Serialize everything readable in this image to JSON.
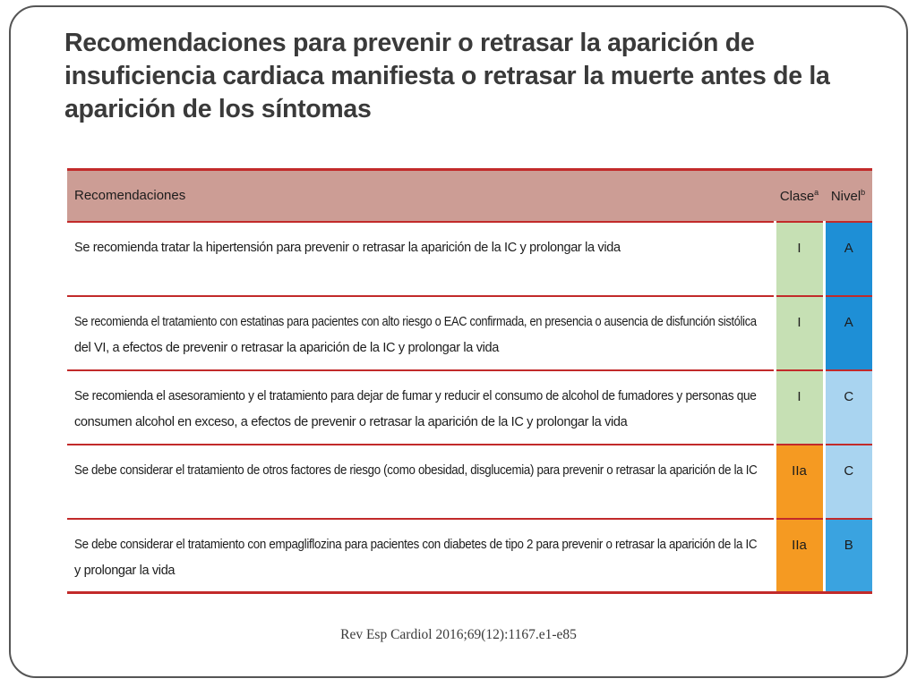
{
  "slide": {
    "title": "Recomendaciones para prevenir o retrasar la aparición de insuficiencia cardiaca manifiesta o retrasar la muerte antes de la aparición de los síntomas",
    "citation": "Rev Esp Cardiol 2016;69(12):1167.e1-e85"
  },
  "table": {
    "headers": {
      "recommendations": "Recomendaciones",
      "class": "Clase",
      "class_sup": "a",
      "level": "Nivel",
      "level_sup": "b"
    },
    "rows": [
      {
        "lines": [
          "Se recomienda tratar la hipertensión para prevenir o retrasar la aparición de la IC y prolongar la vida"
        ],
        "class": "I",
        "class_color": "#c6e0b4",
        "level": "A",
        "level_color": "#1e8fd6"
      },
      {
        "lines": [
          "Se recomienda el tratamiento con estatinas para pacientes con alto riesgo o EAC confirmada, en presencia o ausencia de disfunción sistólica",
          "del VI, a efectos de prevenir o retrasar la aparición de la IC y prolongar la vida"
        ],
        "class": "I",
        "class_color": "#c6e0b4",
        "level": "A",
        "level_color": "#1e8fd6"
      },
      {
        "lines": [
          "Se recomienda el asesoramiento y el tratamiento para dejar de fumar y reducir el consumo de alcohol de fumadores y personas que",
          "consumen alcohol en exceso, a efectos de prevenir o retrasar la aparición de la IC y prolongar la vida"
        ],
        "class": "I",
        "class_color": "#c6e0b4",
        "level": "C",
        "level_color": "#a9d4f0"
      },
      {
        "lines": [
          "Se debe considerar el tratamiento de otros factores de riesgo (como obesidad, disglucemia) para prevenir o retrasar la aparición de la IC"
        ],
        "class": "IIa",
        "class_color": "#f59a22",
        "level": "C",
        "level_color": "#a9d4f0"
      },
      {
        "lines": [
          "Se debe considerar el tratamiento con empagliflozina para pacientes con diabetes de tipo 2 para prevenir o retrasar la aparición de la IC",
          "y prolongar la vida"
        ],
        "class": "IIa",
        "class_color": "#f59a22",
        "level": "B",
        "level_color": "#3aa3e0"
      }
    ]
  }
}
